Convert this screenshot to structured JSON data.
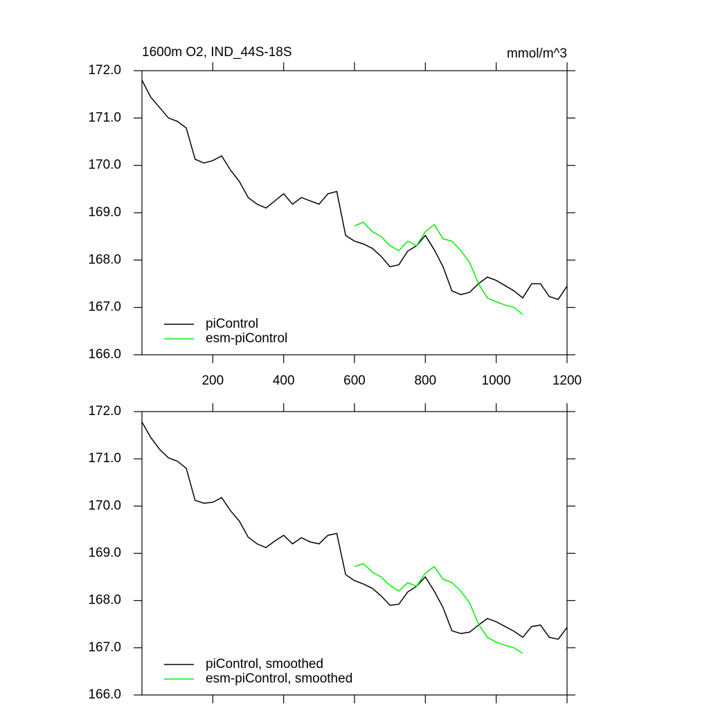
{
  "chart_data": [
    {
      "type": "line",
      "title": "1600m O2, IND_44S-18S",
      "units": "mmol/m^3",
      "x": [
        0,
        25,
        50,
        75,
        100,
        125,
        150,
        175,
        200,
        225,
        250,
        275,
        300,
        325,
        350,
        375,
        400,
        425,
        450,
        475,
        500,
        525,
        550,
        575,
        600,
        625,
        650,
        675,
        700,
        725,
        750,
        775,
        800,
        825,
        850,
        875,
        900,
        925,
        950,
        975,
        1000,
        1025,
        1050,
        1075,
        1100,
        1125,
        1150,
        1175,
        1200
      ],
      "series": [
        {
          "name": "piControl",
          "color": "#000000",
          "values": [
            171.8,
            171.44,
            171.22,
            171.0,
            170.93,
            170.79,
            170.13,
            170.05,
            170.1,
            170.2,
            169.9,
            169.66,
            169.32,
            169.18,
            169.1,
            169.25,
            169.4,
            169.18,
            169.32,
            169.25,
            169.18,
            169.4,
            169.45,
            168.52,
            168.4,
            168.34,
            168.25,
            168.08,
            167.86,
            167.9,
            168.19,
            168.3,
            168.52,
            168.22,
            167.86,
            167.35,
            167.27,
            167.32,
            167.5,
            167.64,
            167.57,
            167.46,
            167.35,
            167.2,
            167.5,
            167.5,
            167.23,
            167.17,
            167.45
          ]
        },
        {
          "name": "esm-piControl",
          "color": "#00ee00",
          "values": [
            null,
            null,
            null,
            null,
            null,
            null,
            null,
            null,
            null,
            null,
            null,
            null,
            null,
            null,
            null,
            null,
            null,
            null,
            null,
            null,
            null,
            null,
            null,
            null,
            168.72,
            168.8,
            168.6,
            168.5,
            168.3,
            168.2,
            168.4,
            168.3,
            168.6,
            168.75,
            168.45,
            168.4,
            168.2,
            167.95,
            167.5,
            167.2,
            167.12,
            167.05,
            167.0,
            166.85,
            null,
            null,
            null,
            null,
            null
          ]
        }
      ],
      "xlim": [
        0,
        1200
      ],
      "xticks": [
        200,
        400,
        600,
        800,
        1000,
        1200
      ],
      "show_xtick_labels": true,
      "ylim": [
        166,
        172
      ],
      "yticks": [
        {
          "value": 166,
          "label": "166.0"
        },
        {
          "value": 167,
          "label": "167.0"
        },
        {
          "value": 168,
          "label": "168.0"
        },
        {
          "value": 169,
          "label": "169.0"
        },
        {
          "value": 170,
          "label": "170.0"
        },
        {
          "value": 171,
          "label": "171.0"
        },
        {
          "value": 172,
          "label": "172.0"
        }
      ],
      "legend": "lower left"
    },
    {
      "type": "line",
      "x": [
        0,
        25,
        50,
        75,
        100,
        125,
        150,
        175,
        200,
        225,
        250,
        275,
        300,
        325,
        350,
        375,
        400,
        425,
        450,
        475,
        500,
        525,
        550,
        575,
        600,
        625,
        650,
        675,
        700,
        725,
        750,
        775,
        800,
        825,
        850,
        875,
        900,
        925,
        950,
        975,
        1000,
        1025,
        1050,
        1075,
        1100,
        1125,
        1150,
        1175,
        1200
      ],
      "series": [
        {
          "name": "piControl, smoothed",
          "color": "#000000",
          "values": [
            171.78,
            171.45,
            171.2,
            171.02,
            170.95,
            170.8,
            170.12,
            170.06,
            170.08,
            170.18,
            169.9,
            169.68,
            169.34,
            169.2,
            169.12,
            169.26,
            169.38,
            169.2,
            169.33,
            169.24,
            169.2,
            169.38,
            169.42,
            168.55,
            168.42,
            168.35,
            168.26,
            168.1,
            167.9,
            167.92,
            168.18,
            168.3,
            168.5,
            168.2,
            167.85,
            167.36,
            167.3,
            167.33,
            167.48,
            167.62,
            167.55,
            167.45,
            167.35,
            167.22,
            167.45,
            167.48,
            167.22,
            167.18,
            167.43
          ]
        },
        {
          "name": "esm-piControl, smoothed",
          "color": "#00ee00",
          "values": [
            null,
            null,
            null,
            null,
            null,
            null,
            null,
            null,
            null,
            null,
            null,
            null,
            null,
            null,
            null,
            null,
            null,
            null,
            null,
            null,
            null,
            null,
            null,
            null,
            168.72,
            168.78,
            168.6,
            168.5,
            168.32,
            168.2,
            168.38,
            168.3,
            168.58,
            168.72,
            168.45,
            168.38,
            168.2,
            167.95,
            167.5,
            167.22,
            167.12,
            167.05,
            167.0,
            166.88,
            null,
            null,
            null,
            null,
            null
          ]
        }
      ],
      "xlim": [
        0,
        1200
      ],
      "xticks": [
        200,
        400,
        600,
        800,
        1000,
        1200
      ],
      "show_xtick_labels": false,
      "ylim": [
        166,
        172
      ],
      "yticks": [
        {
          "value": 166,
          "label": "166.0"
        },
        {
          "value": 167,
          "label": "167.0"
        },
        {
          "value": 168,
          "label": "168.0"
        },
        {
          "value": 169,
          "label": "169.0"
        },
        {
          "value": 170,
          "label": "170.0"
        },
        {
          "value": 171,
          "label": "171.0"
        },
        {
          "value": 172,
          "label": "172.0"
        }
      ],
      "legend": "lower left"
    }
  ]
}
